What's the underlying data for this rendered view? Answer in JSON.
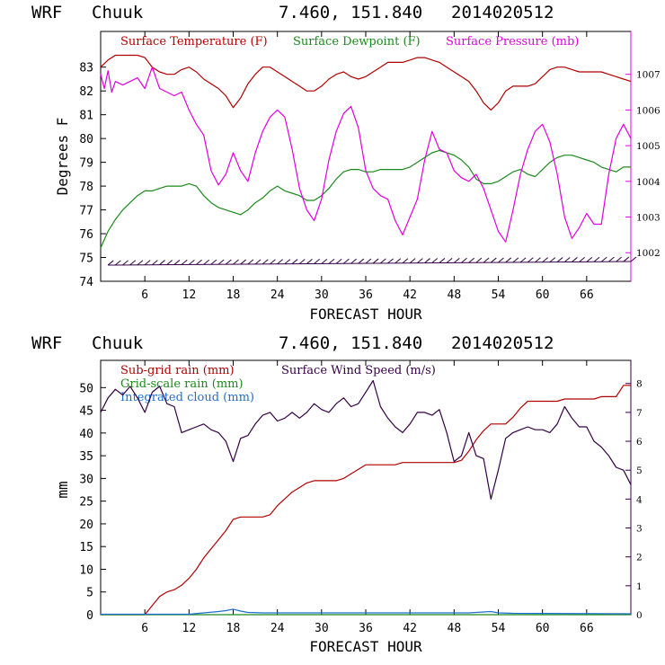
{
  "chart_data": [
    {
      "type": "line",
      "header": {
        "model": "WRF",
        "station": "Chuuk",
        "coords": "7.460, 151.840",
        "date": "2014020512"
      },
      "xlabel": "FORECAST HOUR",
      "ylabel": "Degrees F",
      "xlim": [
        0,
        72
      ],
      "ylim": [
        74,
        84.5
      ],
      "y2lim": [
        1001.2,
        1008.2
      ],
      "xticks": [
        6,
        12,
        18,
        24,
        30,
        36,
        42,
        48,
        54,
        60,
        66
      ],
      "yticks": [
        74,
        75,
        76,
        77,
        78,
        79,
        80,
        81,
        82,
        83
      ],
      "y2ticks": [
        1002,
        1003,
        1004,
        1005,
        1006,
        1007
      ],
      "grid": false,
      "legend_position": "top",
      "colors": {
        "temperature": "#b00000",
        "dewpoint": "#1a8a1a",
        "pressure": "#e000e0",
        "wind": "#330044"
      },
      "series": [
        {
          "name": "Surface Temperature (F)",
          "axis": "left",
          "color": "#b00000",
          "x": [
            0,
            1,
            2,
            3,
            4,
            5,
            6,
            7,
            8,
            9,
            10,
            11,
            12,
            13,
            14,
            15,
            16,
            17,
            18,
            19,
            20,
            21,
            22,
            23,
            24,
            25,
            26,
            27,
            28,
            29,
            30,
            31,
            32,
            33,
            34,
            35,
            36,
            37,
            38,
            39,
            40,
            41,
            42,
            43,
            44,
            45,
            46,
            47,
            48,
            49,
            50,
            51,
            52,
            53,
            54,
            55,
            56,
            57,
            58,
            59,
            60,
            61,
            62,
            63,
            64,
            65,
            66,
            67,
            68,
            69,
            70,
            71,
            72
          ],
          "y": [
            83.0,
            83.3,
            83.5,
            83.5,
            83.5,
            83.5,
            83.4,
            83.0,
            82.8,
            82.7,
            82.7,
            82.9,
            83.0,
            82.8,
            82.5,
            82.3,
            82.1,
            81.8,
            81.3,
            81.7,
            82.3,
            82.7,
            83.0,
            83.0,
            82.8,
            82.6,
            82.4,
            82.2,
            82.0,
            82.0,
            82.2,
            82.5,
            82.7,
            82.8,
            82.6,
            82.5,
            82.6,
            82.8,
            83.0,
            83.2,
            83.2,
            83.2,
            83.3,
            83.4,
            83.4,
            83.3,
            83.2,
            83.0,
            82.8,
            82.6,
            82.4,
            82.0,
            81.5,
            81.2,
            81.5,
            82.0,
            82.2,
            82.2,
            82.2,
            82.3,
            82.6,
            82.9,
            83.0,
            83.0,
            82.9,
            82.8,
            82.8,
            82.8,
            82.8,
            82.7,
            82.6,
            82.5,
            82.4
          ]
        },
        {
          "name": "Surface Dewpoint (F)",
          "axis": "left",
          "color": "#1a8a1a",
          "x": [
            0,
            1,
            2,
            3,
            4,
            5,
            6,
            7,
            8,
            9,
            10,
            11,
            12,
            13,
            14,
            15,
            16,
            17,
            18,
            19,
            20,
            21,
            22,
            23,
            24,
            25,
            26,
            27,
            28,
            29,
            30,
            31,
            32,
            33,
            34,
            35,
            36,
            37,
            38,
            39,
            40,
            41,
            42,
            43,
            44,
            45,
            46,
            47,
            48,
            49,
            50,
            51,
            52,
            53,
            54,
            55,
            56,
            57,
            58,
            59,
            60,
            61,
            62,
            63,
            64,
            65,
            66,
            67,
            68,
            69,
            70,
            71,
            72
          ],
          "y": [
            75.4,
            76.1,
            76.6,
            77.0,
            77.3,
            77.6,
            77.8,
            77.8,
            77.9,
            78.0,
            78.0,
            78.0,
            78.1,
            78.0,
            77.6,
            77.3,
            77.1,
            77.0,
            76.9,
            76.8,
            77.0,
            77.3,
            77.5,
            77.8,
            78.0,
            77.8,
            77.7,
            77.6,
            77.4,
            77.4,
            77.6,
            77.9,
            78.3,
            78.6,
            78.7,
            78.7,
            78.6,
            78.6,
            78.7,
            78.7,
            78.7,
            78.7,
            78.8,
            79.0,
            79.2,
            79.4,
            79.5,
            79.4,
            79.3,
            79.1,
            78.8,
            78.3,
            78.1,
            78.1,
            78.2,
            78.4,
            78.6,
            78.7,
            78.5,
            78.4,
            78.7,
            79.0,
            79.2,
            79.3,
            79.3,
            79.2,
            79.1,
            79.0,
            78.8,
            78.7,
            78.6,
            78.8,
            78.8
          ]
        },
        {
          "name": "Surface Pressure (mb)",
          "axis": "right",
          "color": "#e000e0",
          "x": [
            0,
            0.5,
            1,
            1.5,
            2,
            3,
            4,
            5,
            6,
            7,
            8,
            9,
            10,
            11,
            12,
            13,
            14,
            15,
            16,
            17,
            18,
            19,
            20,
            21,
            22,
            23,
            24,
            25,
            26,
            27,
            28,
            29,
            30,
            31,
            32,
            33,
            34,
            35,
            36,
            37,
            38,
            39,
            40,
            41,
            42,
            43,
            44,
            45,
            46,
            47,
            48,
            49,
            50,
            51,
            52,
            53,
            54,
            55,
            56,
            57,
            58,
            59,
            60,
            61,
            62,
            63,
            64,
            65,
            66,
            67,
            68,
            69,
            70,
            71,
            72
          ],
          "y": [
            1007.0,
            1006.6,
            1007.1,
            1006.5,
            1006.8,
            1006.7,
            1006.8,
            1006.9,
            1006.6,
            1007.2,
            1006.6,
            1006.5,
            1006.4,
            1006.5,
            1006.0,
            1005.6,
            1005.3,
            1004.3,
            1003.9,
            1004.2,
            1004.8,
            1004.3,
            1004.0,
            1004.8,
            1005.4,
            1005.8,
            1006.0,
            1005.8,
            1004.9,
            1003.8,
            1003.2,
            1002.9,
            1003.5,
            1004.6,
            1005.4,
            1005.9,
            1006.1,
            1005.5,
            1004.3,
            1003.8,
            1003.6,
            1003.5,
            1002.9,
            1002.5,
            1003.0,
            1003.5,
            1004.6,
            1005.4,
            1004.9,
            1004.8,
            1004.3,
            1004.1,
            1004.0,
            1004.2,
            1003.8,
            1003.2,
            1002.6,
            1002.3,
            1003.2,
            1004.2,
            1004.9,
            1005.4,
            1005.6,
            1005.1,
            1004.2,
            1003.0,
            1002.4,
            1002.7,
            1003.1,
            1002.8,
            1002.8,
            1004.2,
            1005.2,
            1005.6,
            1005.2
          ]
        }
      ]
    },
    {
      "type": "line",
      "header": {
        "model": "WRF",
        "station": "Chuuk",
        "coords": "7.460, 151.840",
        "date": "2014020512"
      },
      "xlabel": "FORECAST HOUR",
      "ylabel": "mm",
      "xlim": [
        0,
        72
      ],
      "ylim": [
        0,
        56
      ],
      "y2lim": [
        0,
        8.8
      ],
      "xticks": [
        6,
        12,
        18,
        24,
        30,
        36,
        42,
        48,
        54,
        60,
        66
      ],
      "yticks": [
        0,
        5,
        10,
        15,
        20,
        25,
        30,
        35,
        40,
        45,
        50
      ],
      "y2ticks": [
        0,
        1,
        2,
        3,
        4,
        5,
        6,
        7,
        8
      ],
      "grid": false,
      "legend_position": "top",
      "colors": {
        "subgrid": "#b00000",
        "gridscale": "#1a8a1a",
        "cloud": "#1e6fd0",
        "wind_speed": "#330044"
      },
      "series": [
        {
          "name": "Sub-grid rain (mm)",
          "axis": "left",
          "color": "#b00000",
          "x": [
            0,
            6,
            7,
            8,
            9,
            10,
            11,
            12,
            13,
            14,
            15,
            16,
            17,
            18,
            19,
            20,
            21,
            22,
            23,
            24,
            25,
            26,
            27,
            28,
            29,
            30,
            31,
            32,
            33,
            34,
            35,
            36,
            37,
            38,
            39,
            40,
            41,
            42,
            43,
            44,
            45,
            46,
            47,
            48,
            49,
            50,
            51,
            52,
            53,
            54,
            55,
            56,
            57,
            58,
            59,
            60,
            61,
            62,
            63,
            64,
            65,
            66,
            67,
            68,
            69,
            70,
            71,
            72
          ],
          "y": [
            0,
            0,
            2.0,
            4.0,
            5.0,
            5.5,
            6.5,
            8.0,
            10.0,
            12.5,
            14.5,
            16.5,
            18.5,
            21.0,
            21.5,
            21.5,
            21.5,
            21.5,
            22.0,
            24.0,
            25.5,
            27.0,
            28.0,
            29.0,
            29.5,
            29.5,
            29.5,
            29.5,
            30.0,
            31.0,
            32.0,
            33.0,
            33.0,
            33.0,
            33.0,
            33.0,
            33.5,
            33.5,
            33.5,
            33.5,
            33.5,
            33.5,
            33.5,
            33.5,
            34.0,
            36.0,
            38.5,
            40.5,
            42.0,
            42.0,
            42.0,
            43.5,
            45.5,
            47.0,
            47.0,
            47.0,
            47.0,
            47.0,
            47.5,
            47.5,
            47.5,
            47.5,
            47.5,
            48.0,
            48.0,
            48.0,
            50.5,
            50.5
          ]
        },
        {
          "name": "Grid-scale rain (mm)",
          "axis": "left",
          "color": "#1a8a1a",
          "x": [
            0,
            72
          ],
          "y": [
            0,
            0
          ]
        },
        {
          "name": "Integrated cloud (mm)",
          "axis": "left",
          "color": "#1e6fd0",
          "x": [
            0,
            12,
            14,
            16,
            17,
            18,
            19,
            20,
            22,
            30,
            40,
            50,
            52,
            53,
            54,
            56,
            72
          ],
          "y": [
            0.1,
            0.1,
            0.4,
            0.7,
            0.9,
            1.2,
            0.8,
            0.5,
            0.4,
            0.4,
            0.4,
            0.4,
            0.6,
            0.7,
            0.4,
            0.3,
            0.2
          ]
        },
        {
          "name": "Surface Wind Speed (m/s)",
          "axis": "right",
          "color": "#330044",
          "x": [
            0,
            1,
            2,
            3,
            4,
            5,
            6,
            7,
            8,
            9,
            10,
            11,
            12,
            13,
            14,
            15,
            16,
            17,
            18,
            19,
            20,
            21,
            22,
            23,
            24,
            25,
            26,
            27,
            28,
            29,
            30,
            31,
            32,
            33,
            34,
            35,
            36,
            37,
            38,
            39,
            40,
            41,
            42,
            43,
            44,
            45,
            46,
            47,
            48,
            49,
            50,
            51,
            52,
            53,
            54,
            55,
            56,
            57,
            58,
            59,
            60,
            61,
            62,
            63,
            64,
            65,
            66,
            67,
            68,
            69,
            70,
            71,
            72
          ],
          "y": [
            7.0,
            7.5,
            7.8,
            7.6,
            7.9,
            7.5,
            7.0,
            7.7,
            7.9,
            7.3,
            7.2,
            6.3,
            6.4,
            6.5,
            6.6,
            6.4,
            6.3,
            6.0,
            5.3,
            6.1,
            6.2,
            6.6,
            6.9,
            7.0,
            6.7,
            6.8,
            7.0,
            6.8,
            7.0,
            7.3,
            7.1,
            7.0,
            7.3,
            7.5,
            7.2,
            7.3,
            7.7,
            8.1,
            7.2,
            6.8,
            6.5,
            6.3,
            6.6,
            7.0,
            7.0,
            6.9,
            7.1,
            6.3,
            5.3,
            5.5,
            6.3,
            5.5,
            5.4,
            4.0,
            5.0,
            6.1,
            6.3,
            6.4,
            6.5,
            6.4,
            6.4,
            6.3,
            6.6,
            7.2,
            6.8,
            6.5,
            6.5,
            6.0,
            5.8,
            5.5,
            5.1,
            5.0,
            4.5
          ]
        }
      ]
    }
  ]
}
